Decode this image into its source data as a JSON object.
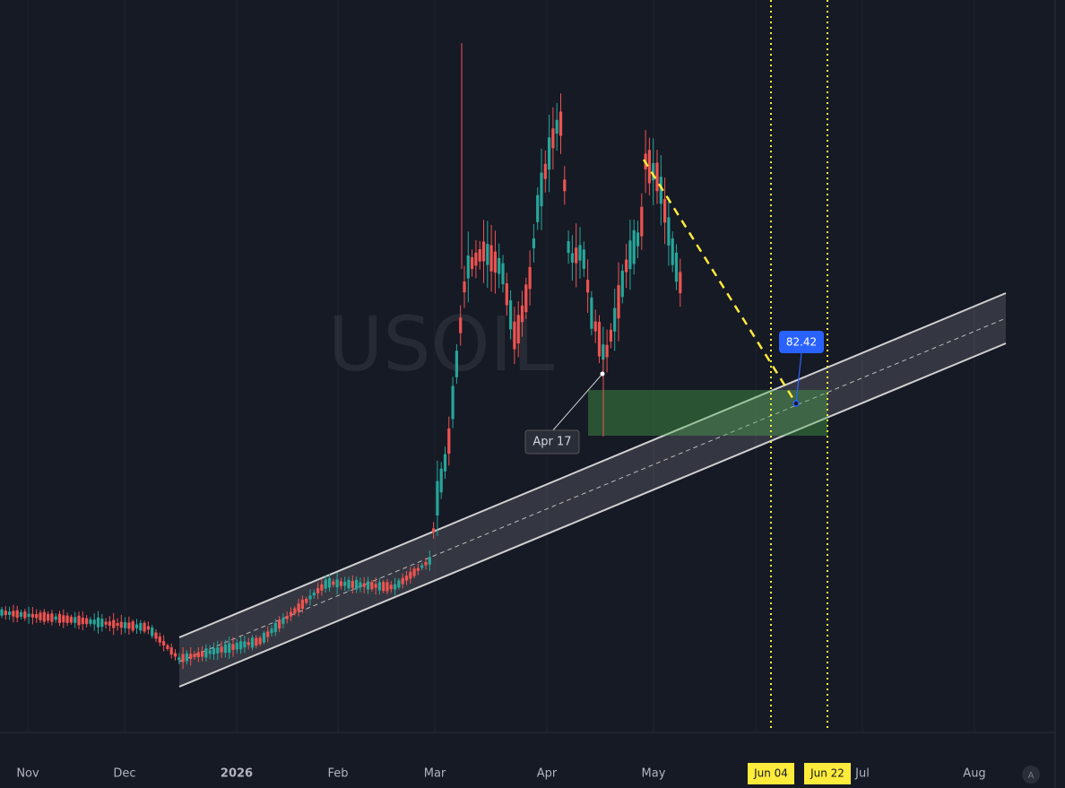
{
  "watermark": "USOIL",
  "time_axis": {
    "labels": [
      "Nov",
      "Dec",
      "2026",
      "Feb",
      "Mar",
      "Apr",
      "May",
      "Jul",
      "Aug"
    ]
  },
  "markers": [
    "Jun 04",
    "Jun 22"
  ],
  "annotations": {
    "date_label": "Apr 17",
    "price_label": "82.42"
  },
  "auto_button": "A"
}
